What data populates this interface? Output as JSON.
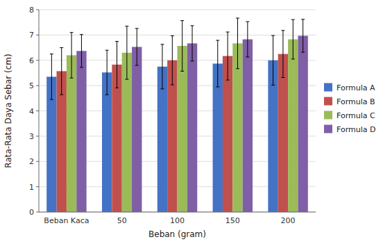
{
  "chart_data": {
    "type": "bar",
    "categories": [
      "Beban Kaca",
      "50",
      "100",
      "150",
      "200"
    ],
    "xlabel": "Beban (gram)",
    "ylabel": "Rata-Rata Daya Sebar (cm)",
    "ylim": [
      0,
      8
    ],
    "yticks": [
      0,
      1,
      2,
      3,
      4,
      5,
      6,
      7,
      8
    ],
    "grid": true,
    "legend": "right",
    "series": [
      {
        "name": "Formula A",
        "color": "#4472C4",
        "values": [
          5.35,
          5.52,
          5.75,
          5.87,
          6.0
        ],
        "errors": [
          0.9,
          0.88,
          0.88,
          0.92,
          0.98
        ]
      },
      {
        "name": "Formula B",
        "color": "#C0504D",
        "values": [
          5.57,
          5.83,
          6.0,
          6.17,
          6.25
        ],
        "errors": [
          0.93,
          0.92,
          0.97,
          0.95,
          0.93
        ]
      },
      {
        "name": "Formula C",
        "color": "#9BBB59",
        "values": [
          6.2,
          6.3,
          6.57,
          6.67,
          6.83
        ],
        "errors": [
          0.9,
          1.05,
          1.0,
          1.0,
          0.78
        ]
      },
      {
        "name": "Formula D",
        "color": "#7F5FA6",
        "values": [
          6.37,
          6.53,
          6.67,
          6.83,
          6.97
        ],
        "errors": [
          0.65,
          0.73,
          0.7,
          0.7,
          0.65
        ]
      }
    ]
  }
}
